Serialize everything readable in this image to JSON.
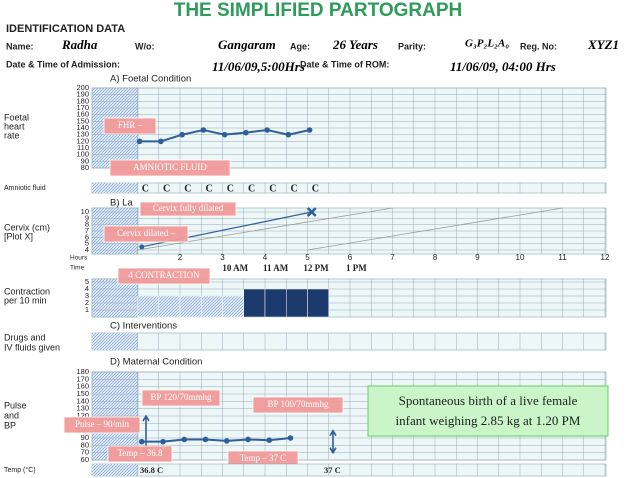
{
  "title": "THE SIMPLIFIED PARTOGRAPH",
  "identification": {
    "heading": "IDENTIFICATION DATA",
    "name_label": "Name:",
    "name": "Radha",
    "wo_label": "W/o:",
    "wo": "Gangaram",
    "age_label": "Age:",
    "age": "26 Years",
    "parity_label": "Parity:",
    "parity": "G₃P₂L₂A₀",
    "reg_label": "Reg. No:",
    "reg": "XYZ1",
    "admission_label": "Date & Time of Admission:",
    "admission": "11/06/09,5:00Hrs",
    "rom_label": "Date & Time of ROM:",
    "rom": "11/06/09, 04:00 Hrs"
  },
  "foetal": {
    "heading": "A) Foetal Condition",
    "axis_label": [
      "Foetal",
      "heart",
      "rate"
    ],
    "ticks": [
      200,
      190,
      180,
      170,
      160,
      150,
      140,
      130,
      120,
      110,
      100,
      90,
      80
    ],
    "fhr": [
      120,
      120,
      130,
      137,
      130,
      133,
      137,
      130,
      137
    ],
    "fhr_note": "FHR –",
    "amniotic_note": "AMNIOTIC FLUID",
    "amniotic_label": "Amniotic fluid",
    "amniotic": [
      "C",
      "C",
      "C",
      "C",
      "C",
      "C",
      "C",
      "C",
      "C"
    ]
  },
  "labour": {
    "heading": "B) La",
    "axis_label": [
      "Cervix (cm)",
      "[Plot X]"
    ],
    "ticks": [
      10,
      9,
      8,
      7,
      6,
      5,
      4
    ],
    "cervix": [
      4.5,
      10
    ],
    "full_note": "Cervix fully dilated",
    "dilated_note": "Cervix dilated –",
    "hours_label": "Hours",
    "time_label": "Time",
    "hours": [
      2,
      3,
      4,
      5,
      6,
      7,
      8,
      9,
      10,
      11,
      12
    ],
    "times": [
      "10 AM",
      "11 AM",
      "12 PM",
      "1 PM"
    ],
    "contraction_note": "4 CONTRACTION",
    "contraction_label": [
      "Contraction",
      "per 10 min"
    ],
    "contraction_ticks": [
      5,
      4,
      3,
      2,
      1
    ],
    "contractions": [
      3,
      3,
      3,
      3,
      3,
      4,
      4,
      4,
      4
    ]
  },
  "interventions": {
    "heading": "C) Interventions",
    "drugs_label": [
      "Drugs and",
      "IV fluids given"
    ]
  },
  "maternal": {
    "heading": "D) Maternal Condition",
    "axis_label": [
      "Pulse",
      "and",
      "BP"
    ],
    "ticks": [
      180,
      170,
      160,
      150,
      140,
      130,
      120,
      110,
      100,
      90,
      80,
      70,
      60
    ],
    "pulse": [
      85,
      85,
      88,
      88,
      86,
      88,
      87,
      90
    ],
    "bp1_note": "BP 120/70mmhg",
    "bp2_note": "BP 100/70mmhg",
    "pulse_note": "Pulse – 90/min",
    "temp1_note": "Temp – 36.8",
    "temp2_note": "Temp – 37 C",
    "birth_note": [
      "Spontaneous birth of a live female",
      "infant weighing 2.85 kg at 1.20 PM"
    ],
    "temp_label": "Temp (°C)",
    "temp1": "36.8 C",
    "temp2": "37 C"
  }
}
